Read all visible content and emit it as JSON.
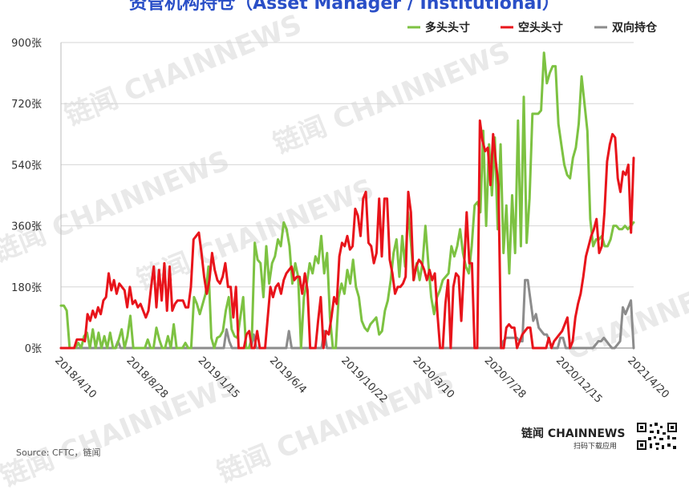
{
  "title": "资管机构持仓（Asset Manager / Institutional）",
  "watermarks": [
    "链闻 CHAINNEWS",
    "链闻 CHAINNEWS",
    "链闻 CHAINNEWS",
    "链闻 CHAINNEWS",
    "CHAINNEWS",
    "链闻 CHAINNEWS",
    "链闻 CHAINNEWS"
  ],
  "brand": "链闻 CHAINNEWS",
  "brand_sub": "扫码下载应用",
  "source": "Source: CFTC，链闻",
  "chart_data": {
    "type": "line",
    "ylim": [
      0,
      900
    ],
    "yticks": [
      0,
      180,
      360,
      540,
      720,
      900
    ],
    "ytick_labels": [
      "0张",
      "180张",
      "360张",
      "540张",
      "720张",
      "900张"
    ],
    "xtick_labels": [
      "2018/4/10",
      "2018/8/28",
      "2019/1/15",
      "2019/6/4",
      "2019/10/22",
      "2020/3/10",
      "2020/7/28",
      "2020/12/15",
      "2021/4/20"
    ],
    "legend_position": "top-right",
    "colors": {
      "long": "#7dc242",
      "short": "#e8141b",
      "spread": "#8c8c8c"
    },
    "series": [
      {
        "name": "多头头寸",
        "key": "long",
        "values": [
          125,
          125,
          110,
          0,
          0,
          0,
          15,
          0,
          35,
          45,
          0,
          55,
          0,
          45,
          0,
          35,
          0,
          45,
          0,
          0,
          25,
          55,
          0,
          35,
          95,
          0,
          0,
          0,
          0,
          0,
          25,
          0,
          0,
          60,
          25,
          0,
          0,
          35,
          0,
          70,
          0,
          0,
          0,
          15,
          0,
          0,
          150,
          130,
          100,
          130,
          160,
          240,
          30,
          0,
          30,
          35,
          50,
          110,
          150,
          55,
          35,
          30,
          90,
          150,
          0,
          0,
          30,
          310,
          260,
          250,
          150,
          300,
          190,
          250,
          270,
          320,
          300,
          370,
          350,
          300,
          190,
          250,
          210,
          0,
          150,
          190,
          250,
          220,
          270,
          250,
          330,
          220,
          280,
          90,
          0,
          0,
          150,
          190,
          160,
          230,
          190,
          260,
          180,
          150,
          80,
          60,
          50,
          70,
          80,
          90,
          40,
          50,
          110,
          140,
          200,
          280,
          320,
          210,
          330,
          240,
          400,
          310,
          200,
          250,
          200,
          250,
          360,
          250,
          150,
          100,
          150,
          170,
          200,
          210,
          220,
          300,
          270,
          300,
          350,
          280,
          240,
          220,
          300,
          420,
          430,
          400,
          640,
          360,
          600,
          450,
          620,
          350,
          600,
          280,
          420,
          220,
          450,
          280,
          670,
          300,
          740,
          310,
          440,
          690,
          690,
          690,
          700,
          870,
          780,
          810,
          830,
          830,
          660,
          600,
          540,
          510,
          500,
          560,
          590,
          660,
          800,
          720,
          640,
          380,
          300,
          320,
          320,
          330,
          300,
          300,
          320,
          360,
          360,
          350,
          350,
          360,
          350,
          360,
          370
        ]
      },
      {
        "name": "空头头寸",
        "key": "short",
        "values": [
          0,
          0,
          0,
          0,
          0,
          0,
          25,
          25,
          25,
          20,
          100,
          80,
          110,
          90,
          120,
          100,
          140,
          150,
          220,
          170,
          200,
          160,
          190,
          180,
          170,
          120,
          180,
          130,
          140,
          120,
          130,
          110,
          90,
          110,
          180,
          240,
          120,
          230,
          140,
          250,
          110,
          240,
          110,
          130,
          140,
          140,
          140,
          120,
          120,
          180,
          320,
          330,
          340,
          280,
          210,
          160,
          200,
          280,
          230,
          200,
          190,
          210,
          250,
          180,
          180,
          90,
          180,
          0,
          0,
          0,
          40,
          50,
          0,
          0,
          50,
          0,
          0,
          0,
          90,
          180,
          150,
          180,
          190,
          160,
          200,
          220,
          230,
          240,
          200,
          210,
          210,
          160,
          220,
          170,
          0,
          0,
          0,
          80,
          150,
          0,
          50,
          40,
          90,
          150,
          130,
          270,
          310,
          300,
          330,
          290,
          300,
          410,
          390,
          330,
          440,
          460,
          310,
          300,
          250,
          280,
          440,
          270,
          440,
          440,
          260,
          220,
          160,
          180,
          180,
          190,
          210,
          460,
          400,
          200,
          240,
          260,
          250,
          230,
          200,
          230,
          200,
          220,
          100,
          0,
          0,
          130,
          200,
          0,
          180,
          220,
          210,
          80,
          230,
          400,
          250,
          250,
          0,
          0,
          670,
          610,
          580,
          590,
          480,
          630,
          550,
          480,
          0,
          0,
          60,
          70,
          60,
          60,
          0,
          20,
          40,
          50,
          60,
          60,
          0,
          0,
          0,
          0,
          0,
          0,
          30,
          0,
          20,
          30,
          40,
          50,
          70,
          90,
          0,
          20,
          90,
          130,
          160,
          210,
          270,
          300,
          330,
          350,
          380,
          280,
          300,
          400,
          550,
          600,
          630,
          620,
          500,
          460,
          520,
          510,
          540,
          340,
          560
        ]
      },
      {
        "name": "双向持仓",
        "key": "spread",
        "values": [
          0,
          0,
          0,
          0,
          0,
          0,
          0,
          0,
          0,
          0,
          0,
          0,
          0,
          0,
          0,
          0,
          0,
          0,
          0,
          0,
          0,
          20,
          0,
          0,
          0,
          0,
          0,
          0,
          0,
          0,
          0,
          0,
          0,
          0,
          0,
          0,
          0,
          0,
          0,
          0,
          0,
          0,
          0,
          0,
          0,
          0,
          0,
          0,
          0,
          0,
          0,
          0,
          0,
          0,
          0,
          0,
          0,
          0,
          0,
          0,
          0,
          55,
          20,
          0,
          0,
          0,
          0,
          0,
          0,
          0,
          0,
          40,
          0,
          0,
          0,
          0,
          0,
          0,
          0,
          0,
          0,
          0,
          0,
          0,
          50,
          0,
          0,
          0,
          0,
          0,
          0,
          0,
          0,
          0,
          0,
          0,
          0,
          50,
          0,
          0,
          0,
          0,
          0,
          0,
          0,
          0,
          0,
          0,
          0,
          0,
          0,
          0,
          0,
          0,
          0,
          0,
          0,
          0,
          0,
          0,
          0,
          0,
          0,
          0,
          0,
          0,
          0,
          0,
          0,
          0,
          0,
          0,
          0,
          0,
          0,
          0,
          0,
          0,
          0,
          0,
          0,
          0,
          0,
          0,
          0,
          0,
          0,
          0,
          0,
          0,
          0,
          0,
          0,
          0,
          0,
          0,
          0,
          0,
          0,
          0,
          0,
          0,
          0,
          20,
          30,
          30,
          30,
          30,
          30,
          20,
          20,
          200,
          200,
          140,
          80,
          100,
          60,
          50,
          40,
          40,
          20,
          0,
          0,
          0,
          30,
          30,
          0,
          0,
          0,
          0,
          0,
          0,
          0,
          0,
          0,
          0,
          0,
          10,
          20,
          20,
          30,
          20,
          10,
          0,
          0,
          10,
          20,
          120,
          100,
          120,
          140,
          0
        ]
      }
    ]
  }
}
